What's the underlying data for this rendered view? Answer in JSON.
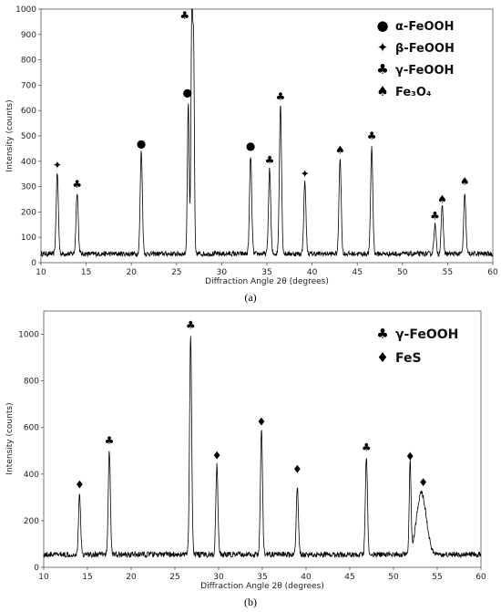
{
  "chart_data": [
    {
      "type": "line",
      "caption": "(a)",
      "xlabel": "Diffraction Angle 2θ (degrees)",
      "ylabel": "Intensity (counts)",
      "xlim": [
        10,
        60
      ],
      "ylim": [
        0,
        1000
      ],
      "xticks": [
        10,
        15,
        20,
        25,
        30,
        35,
        40,
        45,
        50,
        55,
        60
      ],
      "yticks": [
        0,
        100,
        200,
        300,
        400,
        500,
        600,
        700,
        800,
        900,
        1000
      ],
      "baseline": 35,
      "noise": 10,
      "legend_position": "top-right",
      "legend": [
        {
          "symbol": "●",
          "label": "α-FeOOH"
        },
        {
          "symbol": "✦",
          "label": "β-FeOOH"
        },
        {
          "symbol": "♣",
          "label": "γ-FeOOH"
        },
        {
          "symbol": "♠",
          "label": "Fe₃O₄"
        }
      ],
      "peaks": [
        {
          "x": 11.8,
          "y": 355,
          "w": 0.12
        },
        {
          "x": 14.0,
          "y": 280,
          "w": 0.12
        },
        {
          "x": 21.1,
          "y": 440,
          "w": 0.12
        },
        {
          "x": 26.3,
          "y": 630,
          "w": 0.1
        },
        {
          "x": 26.7,
          "y": 1000,
          "w": 0.1
        },
        {
          "x": 26.9,
          "y": 760,
          "w": 0.08
        },
        {
          "x": 33.2,
          "y": 420,
          "w": 0.12
        },
        {
          "x": 35.3,
          "y": 370,
          "w": 0.12
        },
        {
          "x": 36.5,
          "y": 625,
          "w": 0.12
        },
        {
          "x": 39.2,
          "y": 320,
          "w": 0.12
        },
        {
          "x": 43.1,
          "y": 415,
          "w": 0.12
        },
        {
          "x": 46.6,
          "y": 455,
          "w": 0.12
        },
        {
          "x": 53.6,
          "y": 150,
          "w": 0.12
        },
        {
          "x": 54.4,
          "y": 220,
          "w": 0.12
        },
        {
          "x": 56.9,
          "y": 265,
          "w": 0.12
        }
      ],
      "markers": [
        {
          "x": 11.8,
          "y": 385,
          "symbol": "✦"
        },
        {
          "x": 14.0,
          "y": 310,
          "symbol": "♣"
        },
        {
          "x": 21.1,
          "y": 470,
          "symbol": "●"
        },
        {
          "x": 25.9,
          "y": 975,
          "symbol": "♣"
        },
        {
          "x": 26.2,
          "y": 670,
          "symbol": "●"
        },
        {
          "x": 33.2,
          "y": 460,
          "symbol": "●"
        },
        {
          "x": 35.3,
          "y": 405,
          "symbol": "♣"
        },
        {
          "x": 36.5,
          "y": 655,
          "symbol": "♣"
        },
        {
          "x": 39.2,
          "y": 350,
          "symbol": "✦"
        },
        {
          "x": 43.1,
          "y": 445,
          "symbol": "♠"
        },
        {
          "x": 46.6,
          "y": 500,
          "symbol": "♣"
        },
        {
          "x": 53.6,
          "y": 185,
          "symbol": "♣"
        },
        {
          "x": 54.4,
          "y": 250,
          "symbol": "♠"
        },
        {
          "x": 56.9,
          "y": 320,
          "symbol": "♠"
        }
      ]
    },
    {
      "type": "line",
      "caption": "(b)",
      "xlabel": "Diffraction Angle 2θ (degrees)",
      "ylabel": "Intensity (counts)",
      "xlim": [
        10,
        60
      ],
      "ylim": [
        0,
        1100
      ],
      "xticks": [
        10,
        15,
        20,
        25,
        30,
        35,
        40,
        45,
        50,
        55,
        60
      ],
      "yticks": [
        0,
        200,
        400,
        600,
        800,
        1000
      ],
      "baseline": 55,
      "noise": 12,
      "legend_position": "top-right",
      "legend": [
        {
          "symbol": "♣",
          "label": "γ-FeOOH"
        },
        {
          "symbol": "♦",
          "label": "FeS"
        }
      ],
      "peaks": [
        {
          "x": 14.1,
          "y": 310,
          "w": 0.12
        },
        {
          "x": 17.5,
          "y": 500,
          "w": 0.12
        },
        {
          "x": 26.8,
          "y": 995,
          "w": 0.12
        },
        {
          "x": 29.8,
          "y": 435,
          "w": 0.12
        },
        {
          "x": 34.9,
          "y": 590,
          "w": 0.12
        },
        {
          "x": 39.0,
          "y": 350,
          "w": 0.12
        },
        {
          "x": 46.9,
          "y": 480,
          "w": 0.12
        },
        {
          "x": 51.9,
          "y": 440,
          "w": 0.1
        },
        {
          "x": 53.2,
          "y": 320,
          "w": 0.55
        }
      ],
      "markers": [
        {
          "x": 14.1,
          "y": 355,
          "symbol": "♦"
        },
        {
          "x": 17.5,
          "y": 545,
          "symbol": "♣"
        },
        {
          "x": 26.8,
          "y": 1040,
          "symbol": "♣"
        },
        {
          "x": 29.8,
          "y": 480,
          "symbol": "♦"
        },
        {
          "x": 34.9,
          "y": 625,
          "symbol": "♦"
        },
        {
          "x": 39.0,
          "y": 420,
          "symbol": "♦"
        },
        {
          "x": 46.9,
          "y": 515,
          "symbol": "♣"
        },
        {
          "x": 51.9,
          "y": 475,
          "symbol": "♦"
        },
        {
          "x": 53.4,
          "y": 365,
          "symbol": "♦"
        }
      ]
    }
  ]
}
